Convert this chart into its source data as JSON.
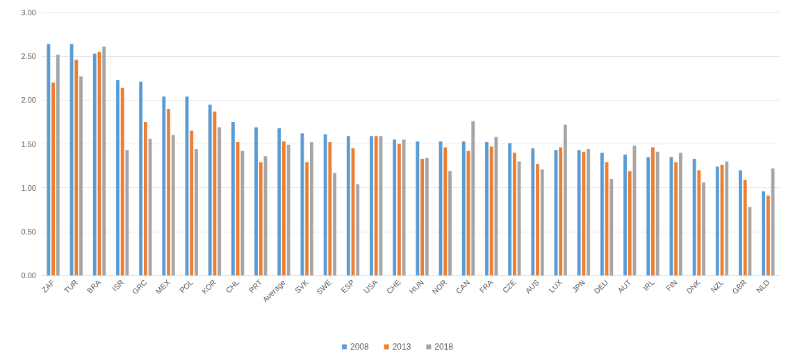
{
  "chart_data": {
    "type": "bar",
    "categories": [
      "ZAF",
      "TUR",
      "BRA",
      "ISR",
      "GRC",
      "MEX",
      "POL",
      "KOR",
      "CHL",
      "PRT",
      "Average",
      "SVK",
      "SWE",
      "ESP",
      "USA",
      "CHE",
      "HUN",
      "NOR",
      "CAN",
      "FRA",
      "CZE",
      "AUS",
      "LUX",
      "JPN",
      "DEU",
      "AUT",
      "IRL",
      "FIN",
      "DNK",
      "NZL",
      "GBR",
      "NLD"
    ],
    "series": [
      {
        "name": "2008",
        "color": "#5b9bd5",
        "values": [
          2.64,
          2.64,
          2.53,
          2.23,
          2.21,
          2.04,
          2.04,
          1.95,
          1.75,
          1.69,
          1.68,
          1.62,
          1.61,
          1.59,
          1.59,
          1.55,
          1.53,
          1.53,
          1.53,
          1.52,
          1.51,
          1.45,
          1.43,
          1.43,
          1.4,
          1.38,
          1.35,
          1.35,
          1.33,
          1.24,
          1.2,
          0.96
        ]
      },
      {
        "name": "2013",
        "color": "#ed7d31",
        "values": [
          2.2,
          2.46,
          2.55,
          2.14,
          1.75,
          1.9,
          1.65,
          1.87,
          1.52,
          1.29,
          1.53,
          1.29,
          1.52,
          1.45,
          1.59,
          1.5,
          1.33,
          1.46,
          1.42,
          1.47,
          1.4,
          1.27,
          1.46,
          1.41,
          1.29,
          1.19,
          1.46,
          1.29,
          1.2,
          1.26,
          1.09,
          0.91
        ]
      },
      {
        "name": "2018",
        "color": "#a5a5a5",
        "values": [
          2.52,
          2.27,
          2.61,
          1.43,
          1.56,
          1.6,
          1.44,
          1.69,
          1.42,
          1.36,
          1.49,
          1.52,
          1.17,
          1.04,
          1.59,
          1.55,
          1.34,
          1.19,
          1.76,
          1.58,
          1.3,
          1.21,
          1.72,
          1.44,
          1.1,
          1.48,
          1.41,
          1.4,
          1.06,
          1.3,
          0.78,
          1.22
        ]
      }
    ],
    "ylim": [
      0,
      3
    ],
    "yticks": [
      {
        "value": 0,
        "label": "0.00"
      },
      {
        "value": 0.5,
        "label": "0.50"
      },
      {
        "value": 1,
        "label": "1.00"
      },
      {
        "value": 1.5,
        "label": "1.50"
      },
      {
        "value": 2,
        "label": "2.00"
      },
      {
        "value": 2.5,
        "label": "2.50"
      },
      {
        "value": 3,
        "label": "3.00"
      }
    ],
    "grid": "y",
    "legend": "bottom"
  }
}
